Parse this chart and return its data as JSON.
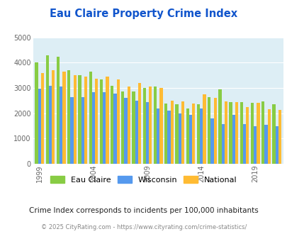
{
  "title": "Eau Claire Property Crime Index",
  "title_color": "#1155cc",
  "subtitle": "Crime Index corresponds to incidents per 100,000 inhabitants",
  "footer": "© 2025 CityRating.com - https://www.cityrating.com/crime-statistics/",
  "years": [
    1999,
    2000,
    2001,
    2002,
    2003,
    2004,
    2005,
    2006,
    2007,
    2008,
    2009,
    2010,
    2011,
    2012,
    2013,
    2014,
    2015,
    2016,
    2017,
    2018,
    2019,
    2020,
    2021
  ],
  "eau_claire": [
    4000,
    4300,
    4250,
    3700,
    3500,
    3650,
    3350,
    3100,
    2850,
    2875,
    3000,
    3050,
    2380,
    2350,
    2175,
    2350,
    2650,
    2950,
    2450,
    2450,
    2400,
    2480,
    2370
  ],
  "wisconsin": [
    2975,
    3075,
    3050,
    2650,
    2650,
    2825,
    2825,
    2775,
    2600,
    2500,
    2450,
    2200,
    2100,
    2000,
    1950,
    2200,
    1800,
    1575,
    1950,
    1575,
    1480,
    1550,
    1480
  ],
  "national": [
    3600,
    3700,
    3650,
    3500,
    3450,
    3375,
    3450,
    3350,
    3050,
    3200,
    3050,
    3000,
    2500,
    2475,
    2375,
    2750,
    2600,
    2475,
    2450,
    2250,
    2400,
    2150,
    2120
  ],
  "eau_claire_color": "#88cc44",
  "wisconsin_color": "#5599ee",
  "national_color": "#ffbb33",
  "background_color": "#ddeef5",
  "ylim": [
    0,
    5000
  ],
  "yticks": [
    0,
    1000,
    2000,
    3000,
    4000,
    5000
  ],
  "xtick_years": [
    1999,
    2004,
    2009,
    2014,
    2019
  ],
  "legend_labels": [
    "Eau Claire",
    "Wisconsin",
    "National"
  ]
}
